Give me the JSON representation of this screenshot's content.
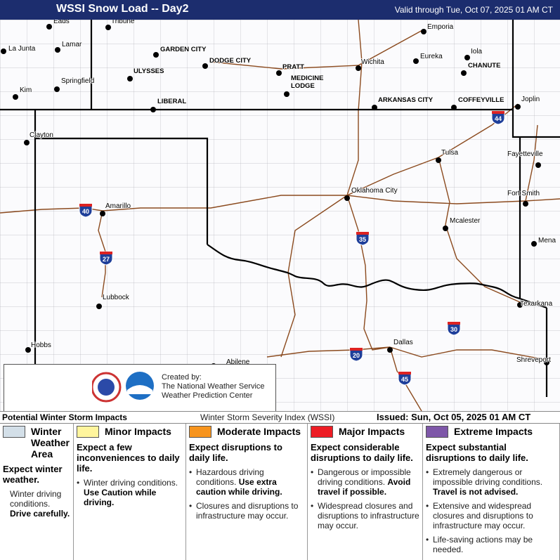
{
  "header": {
    "title": "WSSI Snow Load -- Day2",
    "valid": "Valid through Tue, Oct 07, 2025 01 AM CT"
  },
  "map": {
    "cities": [
      "Eads",
      "Tribune",
      "Emporia",
      "La Junta",
      "Lamar",
      "GARDEN CITY",
      "DODGE CITY",
      "Wichita",
      "Eureka",
      "Iola",
      "ULYSSES",
      "PRATT",
      "CHANUTE",
      "Springfield",
      "MEDICINE LODGE",
      "Kim",
      "LIBERAL",
      "ARKANSAS CITY",
      "COFFEYVILLE",
      "Joplin",
      "Clayton",
      "Tulsa",
      "Fayetteville",
      "Oklahoma City",
      "Fort Smith",
      "Amarillo",
      "Mcalester",
      "Mena",
      "Lubbock",
      "Texarkana",
      "Dallas",
      "Hobbs",
      "Abilene",
      "Shreveport"
    ],
    "interstates": [
      "40",
      "27",
      "35",
      "44",
      "20",
      "45",
      "30"
    ]
  },
  "credit": {
    "lines": [
      "Created by:",
      "The National Weather Service",
      "Weather Prediction Center"
    ]
  },
  "legend": {
    "title": "Potential Winter Storm Impacts",
    "index": "Winter Storm Severity Index (WSSI)",
    "issued": "Issued: Sun, Oct 05, 2025 01 AM CT",
    "columns": [
      {
        "title": "Winter Weather Area",
        "color": "#d3dfe8",
        "summary": "Expect winter weather.",
        "details": [
          {
            "text": "Winter driving conditions.",
            "bold": "Drive carefully."
          }
        ]
      },
      {
        "title": "Minor Impacts",
        "color": "#fff59d",
        "summary": "Expect a few inconveniences to daily life.",
        "details": [
          {
            "text": "Winter driving conditions.",
            "bold": "Use Caution while driving."
          }
        ]
      },
      {
        "title": "Moderate Impacts",
        "color": "#f7941d",
        "summary": "Expect disruptions to daily life.",
        "details": [
          {
            "text": "Hazardous driving conditions.",
            "bold": "Use extra caution while driving."
          },
          {
            "text": "Closures and disruptions to infrastructure may occur."
          }
        ]
      },
      {
        "title": "Major Impacts",
        "color": "#ed1c24",
        "summary": "Expect considerable disruptions to daily life.",
        "details": [
          {
            "text": "Dangerous or impossible driving conditions.",
            "bold": "Avoid travel if possible."
          },
          {
            "text": "Widespread closures and disruptions to infrastructure may occur."
          }
        ]
      },
      {
        "title": "Extreme Impacts",
        "color": "#7e57a8",
        "summary": "Expect substantial disruptions to daily life.",
        "details": [
          {
            "text": "Extremely dangerous or impossible driving conditions.",
            "bold": "Travel is not advised."
          },
          {
            "text": "Extensive and widespread closures and disruptions to infrastructure may occur."
          },
          {
            "text": "Life-saving actions may be needed."
          }
        ]
      }
    ]
  }
}
